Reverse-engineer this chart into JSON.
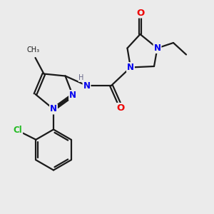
{
  "bg_color": "#ebebeb",
  "bond_color": "#1a1a1a",
  "N_color": "#0000ee",
  "O_color": "#ee0000",
  "Cl_color": "#22bb22",
  "H_color": "#666688",
  "line_width": 1.6,
  "font_size": 8.5,
  "fig_size": [
    3.0,
    3.0
  ],
  "dpi": 100,
  "xlim": [
    0,
    10
  ],
  "ylim": [
    0,
    10
  ]
}
